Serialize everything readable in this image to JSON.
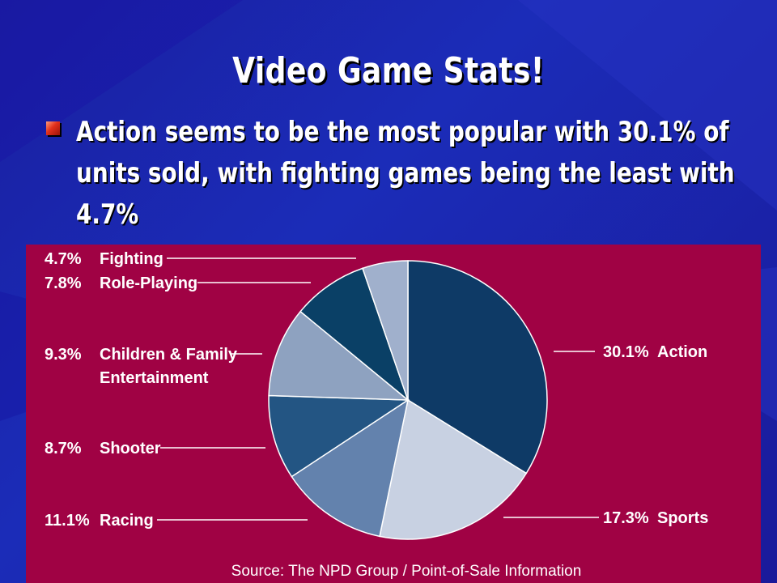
{
  "slide": {
    "title": "Video Game Stats!",
    "bullet": "Action seems to be the most popular with 30.1% of units sold, with fighting games being the least with 4.7%",
    "bullet_icon": "square-bullet-icon"
  },
  "colors": {
    "background": "#1b2cb8",
    "panel": "#a00244",
    "text": "#ffffff"
  },
  "chart_data": {
    "type": "pie",
    "source": "Source: The NPD Group / Point-of-Sale Information",
    "slices": [
      {
        "name": "Action",
        "value": 30.1,
        "pct_label": "30.1%",
        "color": "#0e3a66"
      },
      {
        "name": "Sports",
        "value": 17.3,
        "pct_label": "17.3%",
        "color": "#c8d1e2"
      },
      {
        "name": "Racing",
        "value": 11.1,
        "pct_label": "11.1%",
        "color": "#6382ad"
      },
      {
        "name": "Shooter",
        "value": 8.7,
        "pct_label": "8.7%",
        "color": "#235583"
      },
      {
        "name": "Children & Family Entertainment",
        "value": 9.3,
        "pct_label": "9.3%",
        "color": "#8ea2c0"
      },
      {
        "name": "Role-Playing",
        "value": 7.8,
        "pct_label": "7.8%",
        "color": "#0a4066"
      },
      {
        "name": "Fighting",
        "value": 4.7,
        "pct_label": "4.7%",
        "color": "#a0b0cc"
      }
    ]
  }
}
